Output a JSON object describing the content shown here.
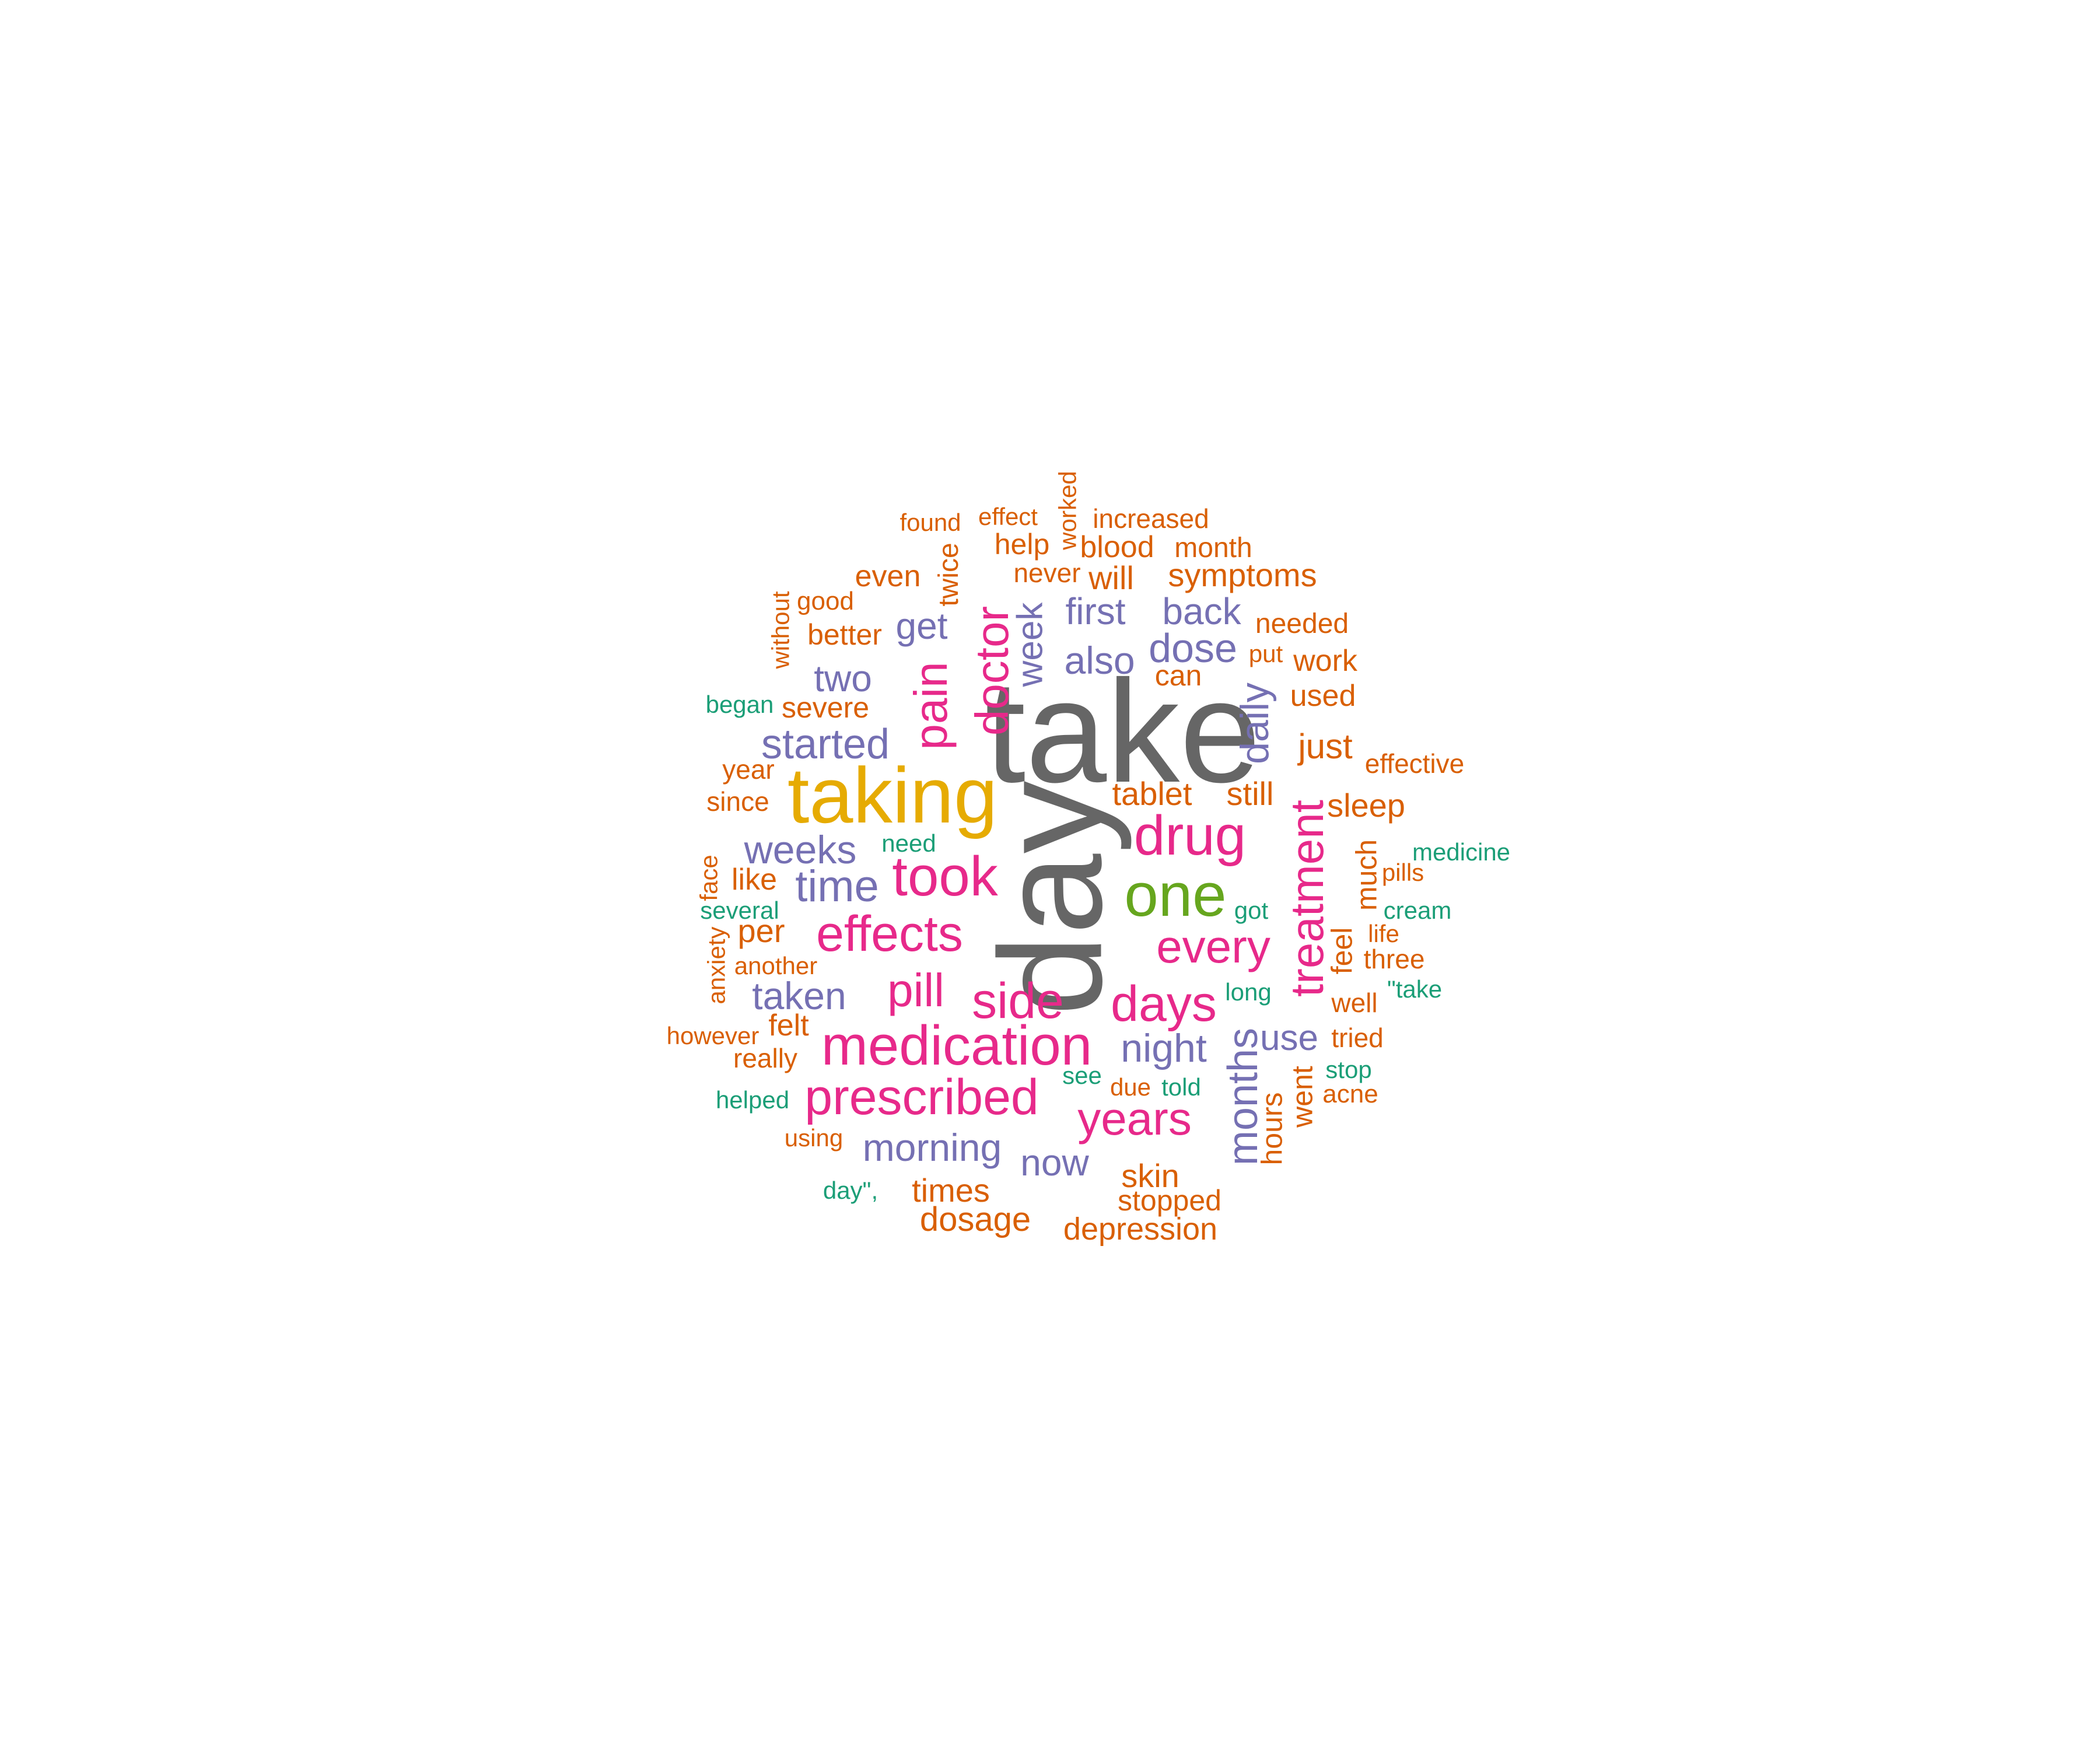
{
  "word_cloud": {
    "colors": {
      "gray": "#666666",
      "gold": "#E6AB02",
      "green": "#66A61E",
      "pink": "#E7298A",
      "purple": "#7570B3",
      "orange": "#D95F02",
      "teal": "#1B9E77"
    },
    "words": [
      {
        "text": "take",
        "color": "gray"
      },
      {
        "text": "day",
        "color": "gray"
      },
      {
        "text": "taking",
        "color": "gold"
      },
      {
        "text": "one",
        "color": "green"
      },
      {
        "text": "drug",
        "color": "pink"
      },
      {
        "text": "took",
        "color": "pink"
      },
      {
        "text": "medication",
        "color": "pink"
      },
      {
        "text": "prescribed",
        "color": "pink"
      },
      {
        "text": "effects",
        "color": "pink"
      },
      {
        "text": "side",
        "color": "pink"
      },
      {
        "text": "days",
        "color": "pink"
      },
      {
        "text": "years",
        "color": "pink"
      },
      {
        "text": "every",
        "color": "pink"
      },
      {
        "text": "pill",
        "color": "pink"
      },
      {
        "text": "doctor",
        "color": "pink"
      },
      {
        "text": "pain",
        "color": "pink"
      },
      {
        "text": "treatment",
        "color": "pink"
      },
      {
        "text": "started",
        "color": "purple"
      },
      {
        "text": "time",
        "color": "purple"
      },
      {
        "text": "weeks",
        "color": "purple"
      },
      {
        "text": "taken",
        "color": "purple"
      },
      {
        "text": "morning",
        "color": "purple"
      },
      {
        "text": "night",
        "color": "purple"
      },
      {
        "text": "now",
        "color": "purple"
      },
      {
        "text": "two",
        "color": "purple"
      },
      {
        "text": "get",
        "color": "purple"
      },
      {
        "text": "first",
        "color": "purple"
      },
      {
        "text": "also",
        "color": "purple"
      },
      {
        "text": "dose",
        "color": "purple"
      },
      {
        "text": "back",
        "color": "purple"
      },
      {
        "text": "use",
        "color": "purple"
      },
      {
        "text": "week",
        "color": "purple"
      },
      {
        "text": "daily",
        "color": "purple"
      },
      {
        "text": "months",
        "color": "purple"
      },
      {
        "text": "found",
        "color": "orange"
      },
      {
        "text": "effect",
        "color": "orange"
      },
      {
        "text": "increased",
        "color": "orange"
      },
      {
        "text": "help",
        "color": "orange"
      },
      {
        "text": "blood",
        "color": "orange"
      },
      {
        "text": "month",
        "color": "orange"
      },
      {
        "text": "even",
        "color": "orange"
      },
      {
        "text": "never",
        "color": "orange"
      },
      {
        "text": "will",
        "color": "orange"
      },
      {
        "text": "symptoms",
        "color": "orange"
      },
      {
        "text": "good",
        "color": "orange"
      },
      {
        "text": "better",
        "color": "orange"
      },
      {
        "text": "needed",
        "color": "orange"
      },
      {
        "text": "put",
        "color": "orange"
      },
      {
        "text": "work",
        "color": "orange"
      },
      {
        "text": "can",
        "color": "orange"
      },
      {
        "text": "used",
        "color": "orange"
      },
      {
        "text": "severe",
        "color": "orange"
      },
      {
        "text": "just",
        "color": "orange"
      },
      {
        "text": "effective",
        "color": "orange"
      },
      {
        "text": "year",
        "color": "orange"
      },
      {
        "text": "since",
        "color": "orange"
      },
      {
        "text": "tablet",
        "color": "orange"
      },
      {
        "text": "still",
        "color": "orange"
      },
      {
        "text": "sleep",
        "color": "orange"
      },
      {
        "text": "like",
        "color": "orange"
      },
      {
        "text": "pills",
        "color": "orange"
      },
      {
        "text": "per",
        "color": "orange"
      },
      {
        "text": "life",
        "color": "orange"
      },
      {
        "text": "another",
        "color": "orange"
      },
      {
        "text": "three",
        "color": "orange"
      },
      {
        "text": "well",
        "color": "orange"
      },
      {
        "text": "however",
        "color": "orange"
      },
      {
        "text": "felt",
        "color": "orange"
      },
      {
        "text": "tried",
        "color": "orange"
      },
      {
        "text": "really",
        "color": "orange"
      },
      {
        "text": "due",
        "color": "orange"
      },
      {
        "text": "acne",
        "color": "orange"
      },
      {
        "text": "using",
        "color": "orange"
      },
      {
        "text": "skin",
        "color": "orange"
      },
      {
        "text": "stopped",
        "color": "orange"
      },
      {
        "text": "times",
        "color": "orange"
      },
      {
        "text": "dosage",
        "color": "orange"
      },
      {
        "text": "depression",
        "color": "orange"
      },
      {
        "text": "worked",
        "color": "orange"
      },
      {
        "text": "twice",
        "color": "orange"
      },
      {
        "text": "without",
        "color": "orange"
      },
      {
        "text": "face",
        "color": "orange"
      },
      {
        "text": "anxiety",
        "color": "orange"
      },
      {
        "text": "much",
        "color": "orange"
      },
      {
        "text": "feel",
        "color": "orange"
      },
      {
        "text": "went",
        "color": "orange"
      },
      {
        "text": "hours",
        "color": "orange"
      },
      {
        "text": "began",
        "color": "teal"
      },
      {
        "text": "need",
        "color": "teal"
      },
      {
        "text": "medicine",
        "color": "teal"
      },
      {
        "text": "several",
        "color": "teal"
      },
      {
        "text": "got",
        "color": "teal"
      },
      {
        "text": "cream",
        "color": "teal"
      },
      {
        "text": "long",
        "color": "teal"
      },
      {
        "text": "\"take",
        "color": "teal"
      },
      {
        "text": "see",
        "color": "teal"
      },
      {
        "text": "told",
        "color": "teal"
      },
      {
        "text": "stop",
        "color": "teal"
      },
      {
        "text": "helped",
        "color": "teal"
      },
      {
        "text": "day\",",
        "color": "teal"
      }
    ]
  }
}
